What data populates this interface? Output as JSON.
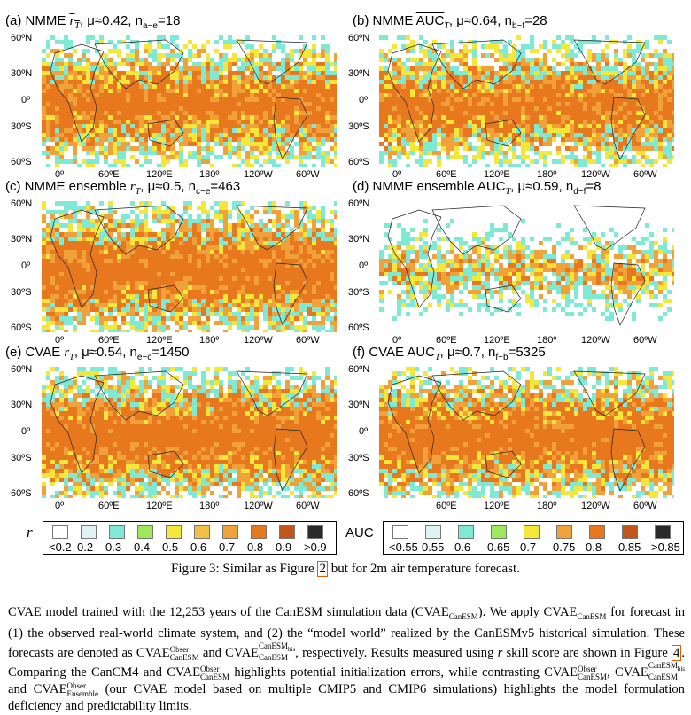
{
  "panels": [
    {
      "id": "a",
      "prefix": "(a) NMME ",
      "var": "r",
      "sub": "T",
      "mu": ", μ≈0.42, n",
      "nsub": "a−e",
      "nval": "=18",
      "overline": true,
      "metric": "r"
    },
    {
      "id": "b",
      "prefix": "(b) NMME ",
      "var": "AUC",
      "sub": "T",
      "mu": ", μ≈0.64, n",
      "nsub": "b−f",
      "nval": "=28",
      "overline": true,
      "metric": "auc"
    },
    {
      "id": "c",
      "prefix": "(c) NMME ensemble ",
      "var": "r",
      "sub": "T",
      "mu": ", μ≈0.5, n",
      "nsub": "c−e",
      "nval": "=463",
      "overline": false,
      "metric": "r"
    },
    {
      "id": "d",
      "prefix": "(d) NMME ensemble AUC",
      "var": "",
      "sub": "T",
      "mu": ", μ≈0.59, n",
      "nsub": "d−f",
      "nval": "=8",
      "overline": false,
      "metric": "auc"
    },
    {
      "id": "e",
      "prefix": "(e) CVAE ",
      "var": "r",
      "sub": "T",
      "mu": ", μ≈0.54, n",
      "nsub": "e−c",
      "nval": "=1450",
      "overline": false,
      "metric": "r"
    },
    {
      "id": "f",
      "prefix": "(f) CVAE AUC",
      "var": "",
      "sub": "T",
      "mu": ", μ≈0.7, n",
      "nsub": "f−b",
      "nval": "=5325",
      "overline": false,
      "metric": "auc"
    }
  ],
  "lat_labels": [
    "60ºN",
    "30ºN",
    "0º",
    "30ºS",
    "60ºS"
  ],
  "lon_labels": [
    "0º",
    "60ºE",
    "120ºE",
    "180º",
    "120ºW",
    "60ºW"
  ],
  "legend_r": {
    "symbol": "r",
    "labels": [
      "<0.2",
      "0.2",
      "0.3",
      "0.4",
      "0.5",
      "0.6",
      "0.7",
      "0.8",
      "0.9",
      ">0.9"
    ],
    "colors": [
      "#ffffff",
      "#dff3f4",
      "#7eead6",
      "#9ee85c",
      "#f5e63a",
      "#f2c044",
      "#f0a13a",
      "#e8781e",
      "#c2561a",
      "#2a2a2a"
    ]
  },
  "legend_auc": {
    "symbol": "AUC",
    "labels": [
      "<0.55",
      "0.55",
      "0.6",
      "0.65",
      "0.7",
      "0.75",
      "0.8",
      "0.85",
      ">0.85"
    ],
    "colors": [
      "#ffffff",
      "#dff3f4",
      "#7eead6",
      "#9ee85c",
      "#f5e63a",
      "#f0a13a",
      "#e8781e",
      "#c2561a",
      "#2a2a2a"
    ]
  },
  "caption": {
    "before": "Figure 3: Similar as Figure ",
    "ref": "2",
    "after": " but for 2m air temperature forecast."
  },
  "body": {
    "t1": "CVAE model trained with the 12,253 years of the CanESM simulation data (CVAE",
    "s_canesm": "CanESM",
    "t2": "). We apply CVAE",
    "t3": " for forecast in (1) the observed real-world climate system, and (2) the “model world” realized by the CanESMv5 historical simulation. These forecasts are denoted as CVAE",
    "sup_obser": "Obser",
    "t4": " and CVAE",
    "sup_his": "CanESM",
    "sup_his2": "his",
    "t5": ", respectively. Results measured using ",
    "t5r": "r",
    "t6": " skill score are shown in Figure ",
    "fig_ref": "4",
    "t7": ". Comparing the CanCM4 and CVAE",
    "t8": " highlights potential initialization errors, while contrasting CVAE",
    "t9": ", CVAE",
    "t10": " and CVAE",
    "s_ensemble": "Ensemble",
    "t11": " (our CVAE model based on multiple CMIP5 and CMIP6 simulations) highlights the model formulation deficiency and predictability limits."
  }
}
